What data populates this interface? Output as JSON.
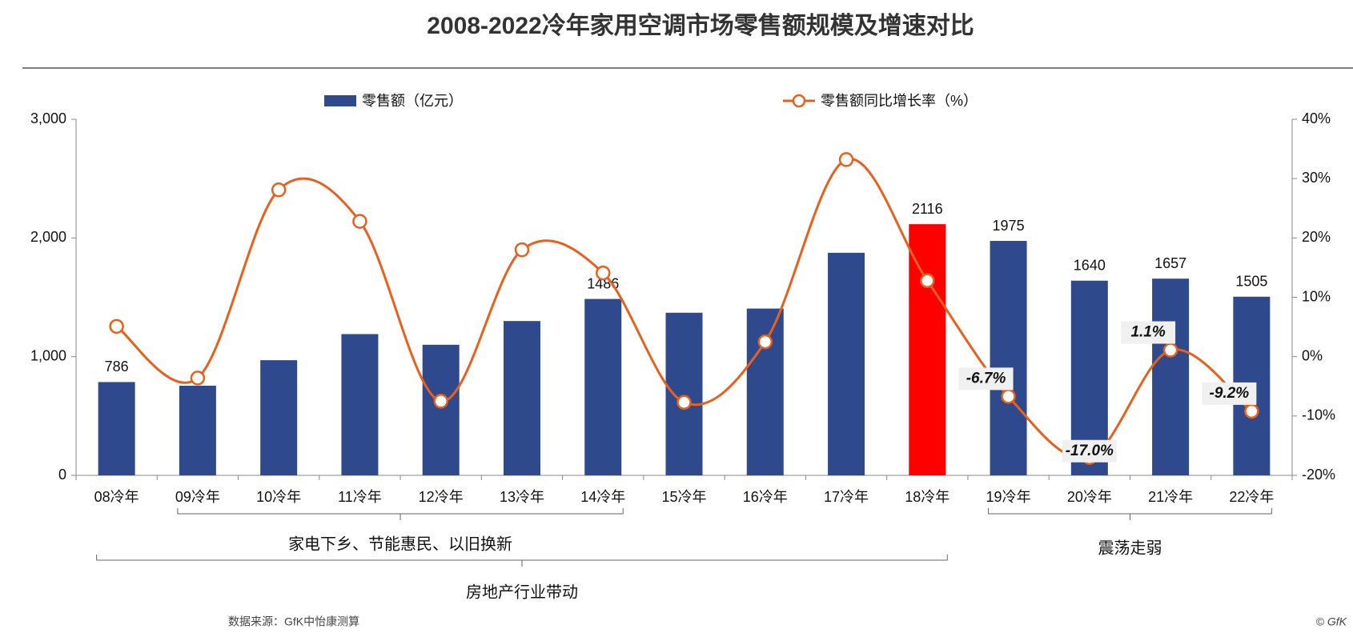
{
  "chart_data": {
    "type": "bar_line",
    "title": "2008-2022冷年家用空调市场零售额规模及增速对比",
    "categories": [
      "08冷年",
      "09冷年",
      "10冷年",
      "11冷年",
      "12冷年",
      "13冷年",
      "14冷年",
      "15冷年",
      "16冷年",
      "17冷年",
      "18冷年",
      "19冷年",
      "20冷年",
      "21冷年",
      "22冷年"
    ],
    "series": [
      {
        "name": "零售额（亿元）",
        "type": "bar",
        "color": "#2e4a8c",
        "colors": [
          "#2e4a8c",
          "#2e4a8c",
          "#2e4a8c",
          "#2e4a8c",
          "#2e4a8c",
          "#2e4a8c",
          "#2e4a8c",
          "#2e4a8c",
          "#2e4a8c",
          "#2e4a8c",
          "#ff0000",
          "#2e4a8c",
          "#2e4a8c",
          "#2e4a8c",
          "#2e4a8c"
        ],
        "values": [
          786,
          755,
          970,
          1190,
          1100,
          1300,
          1486,
          1370,
          1405,
          1875,
          2116,
          1975,
          1640,
          1657,
          1505
        ],
        "value_labels": [
          "786",
          null,
          null,
          null,
          null,
          null,
          "1486",
          null,
          null,
          null,
          "2116",
          "1975",
          "1640",
          "1657",
          "1505"
        ]
      },
      {
        "name": "零售额同比增长率（%）",
        "type": "line",
        "axis": "y2",
        "color": "#e8601c",
        "values": [
          5.1,
          -3.6,
          28.1,
          22.8,
          -7.5,
          18.0,
          14.1,
          -7.7,
          2.5,
          33.2,
          12.8,
          -6.7,
          -17.0,
          1.1,
          -9.2
        ],
        "value_labels": [
          null,
          null,
          null,
          null,
          null,
          null,
          null,
          null,
          null,
          null,
          null,
          "-6.7%",
          "-17.0%",
          "1.1%",
          "-9.2%"
        ]
      }
    ],
    "ylim": [
      0,
      3000
    ],
    "yticks": [
      0,
      {
        "value": 1000,
        "label": "1,000"
      },
      {
        "value": 2000,
        "label": "2,000"
      },
      {
        "value": 3000,
        "label": "3,000"
      }
    ],
    "y2lim": [
      -20,
      40
    ],
    "y2ticks": [
      {
        "value": -20,
        "label": "-20%"
      },
      {
        "value": -10,
        "label": "-10%"
      },
      {
        "value": 0,
        "label": "0%"
      },
      {
        "value": 10,
        "label": "10%"
      },
      {
        "value": 20,
        "label": "20%"
      },
      {
        "value": 30,
        "label": "30%"
      },
      {
        "value": 40,
        "label": "40%"
      }
    ],
    "annotations": [
      "家电下乡、节能惠民、以旧换新",
      "房地产行业带动",
      "震荡走弱"
    ],
    "source": "数据来源：GfK中怡康测算",
    "credit": "© GfK"
  }
}
